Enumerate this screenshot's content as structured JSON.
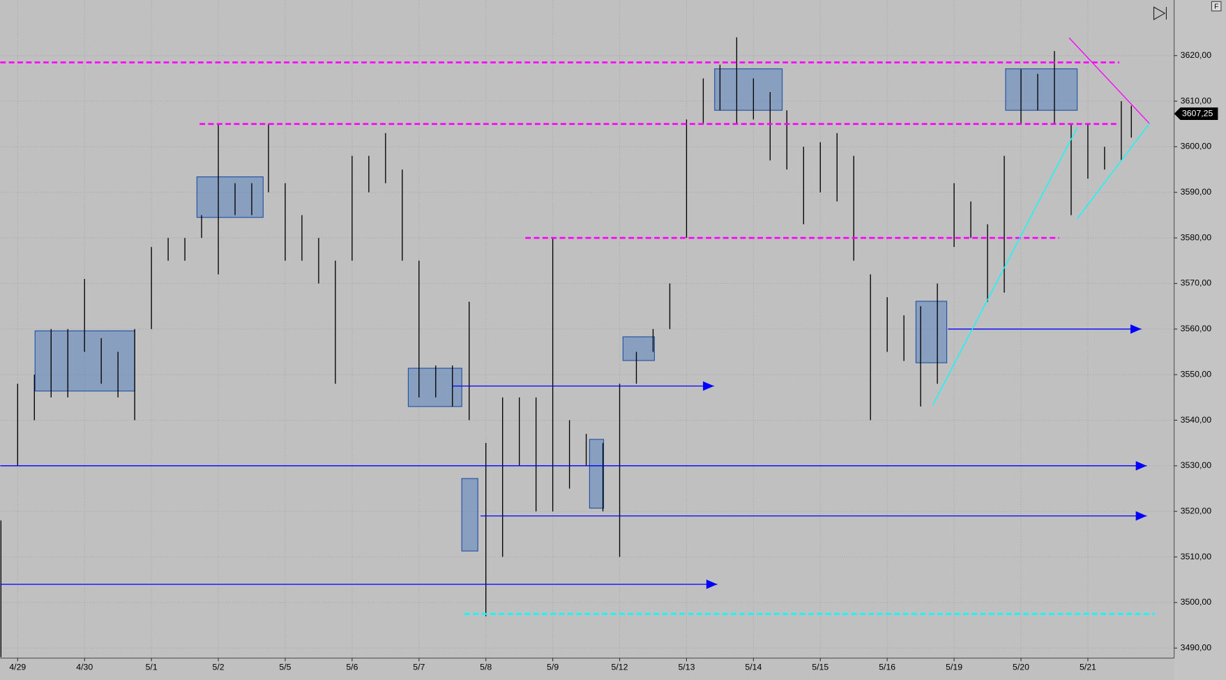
{
  "chart_data": {
    "type": "ohlc",
    "color": "#000000",
    "x": [
      -0.25,
      0,
      0.25,
      0.5,
      0.75,
      1,
      1.25,
      1.5,
      1.75,
      2,
      2.25,
      2.5,
      2.75,
      3,
      3.25,
      3.5,
      3.75,
      4,
      4.25,
      4.5,
      4.75,
      5,
      5.25,
      5.5,
      5.75,
      6,
      6.25,
      6.5,
      6.75,
      7,
      7.25,
      7.5,
      7.75,
      8,
      8.25,
      8.5,
      8.75,
      9,
      9.25,
      9.5,
      9.75,
      10,
      10.25,
      10.5,
      10.75,
      11,
      11.25,
      11.5,
      11.75,
      12,
      12.25,
      12.5,
      12.75,
      13,
      13.25,
      13.5,
      13.75,
      14,
      14.25,
      14.5,
      14.75,
      15,
      15.25,
      15.5,
      15.75,
      16,
      16.25,
      16.5,
      16.65
    ],
    "high": [
      3518,
      3548,
      3550,
      3560,
      3560,
      3571,
      3558,
      3555,
      3560,
      3578,
      3580,
      3580,
      3585,
      3605,
      3592,
      3592,
      3605,
      3592,
      3585,
      3580,
      3575,
      3598,
      3598,
      3603,
      3595,
      3575,
      3552,
      3552,
      3566,
      3535,
      3545,
      3545,
      3545,
      3580,
      3540,
      3537,
      3535,
      3548,
      3555,
      3560,
      3570,
      3606,
      3615,
      3618,
      3624,
      3615,
      3612,
      3608,
      3600,
      3601,
      3603,
      3598,
      3572,
      3567,
      3563,
      3565,
      3570,
      3592,
      3588,
      3583,
      3598,
      3617,
      3616,
      3621,
      3605,
      3605,
      3600,
      3610,
      3609
    ],
    "low": [
      3488,
      3530,
      3540,
      3545,
      3545,
      3555,
      3548,
      3545,
      3540,
      3560,
      3575,
      3575,
      3580,
      3572,
      3585,
      3585,
      3590,
      3575,
      3575,
      3570,
      3548,
      3575,
      3590,
      3592,
      3575,
      3545,
      3545,
      3543,
      3540,
      3497,
      3510,
      3530,
      3520,
      3520,
      3525,
      3530,
      3520,
      3510,
      3548,
      3555,
      3560,
      3580,
      3605,
      3608,
      3605,
      3606,
      3597,
      3595,
      3583,
      3590,
      3588,
      3575,
      3540,
      3555,
      3553,
      3543,
      3548,
      3578,
      3580,
      3566,
      3568,
      3605,
      3608,
      3605,
      3585,
      3593,
      3595,
      3597,
      3602
    ],
    "xlim": [
      -0.26,
      17.29
    ],
    "ylim": [
      3487.8,
      3632.2
    ],
    "grid": true,
    "xticks": [
      {
        "value": 0,
        "label": "4/29"
      },
      {
        "value": 1,
        "label": "4/30"
      },
      {
        "value": 2,
        "label": "5/1"
      },
      {
        "value": 3,
        "label": "5/2"
      },
      {
        "value": 4,
        "label": "5/5"
      },
      {
        "value": 5,
        "label": "5/6"
      },
      {
        "value": 6,
        "label": "5/7"
      },
      {
        "value": 7,
        "label": "5/8"
      },
      {
        "value": 8,
        "label": "5/9"
      },
      {
        "value": 9,
        "label": "5/12"
      },
      {
        "value": 10,
        "label": "5/13"
      },
      {
        "value": 11,
        "label": "5/14"
      },
      {
        "value": 12,
        "label": "5/15"
      },
      {
        "value": 13,
        "label": "5/16"
      },
      {
        "value": 14,
        "label": "5/19"
      },
      {
        "value": 15,
        "label": "5/20"
      },
      {
        "value": 16,
        "label": "5/21"
      }
    ],
    "yticks": [
      {
        "value": 3490,
        "label": "3490,00"
      },
      {
        "value": 3500,
        "label": "3500,00"
      },
      {
        "value": 3510,
        "label": "3510,00"
      },
      {
        "value": 3520,
        "label": "3520,00"
      },
      {
        "value": 3530,
        "label": "3530,00"
      },
      {
        "value": 3540,
        "label": "3540,00"
      },
      {
        "value": 3550,
        "label": "3550,00"
      },
      {
        "value": 3560,
        "label": "3560,00"
      },
      {
        "value": 3570,
        "label": "3570,00"
      },
      {
        "value": 3580,
        "label": "3580,00"
      },
      {
        "value": 3590,
        "label": "3590,00"
      },
      {
        "value": 3600,
        "label": "3600,00"
      },
      {
        "value": 3610,
        "label": "3610,00"
      },
      {
        "value": 3620,
        "label": "3620,00"
      }
    ],
    "last_price": {
      "value": 3607.25,
      "label": "3607,25"
    },
    "levels": [
      {
        "value": 3618.5,
        "from": -0.26,
        "to": 16.47,
        "color": "#ff00ff",
        "dashed": true,
        "arrow": false
      },
      {
        "value": 3605,
        "from": 2.72,
        "to": 16.47,
        "color": "#ff00ff",
        "dashed": true,
        "arrow": false
      },
      {
        "value": 3580,
        "from": 7.59,
        "to": 15.57,
        "color": "#ff00ff",
        "dashed": true,
        "arrow": false
      },
      {
        "value": 3497.5,
        "from": 6.68,
        "to": 17.0,
        "color": "#00ffff",
        "dashed": true,
        "arrow": false
      },
      {
        "value": 3530,
        "from": -0.26,
        "to": 16.88,
        "color": "#0000ff",
        "dashed": false,
        "arrow": true
      },
      {
        "value": 3519,
        "from": 6.92,
        "to": 16.88,
        "color": "#0000ff",
        "dashed": false,
        "arrow": true
      },
      {
        "value": 3504,
        "from": -0.26,
        "to": 10.46,
        "color": "#0000ff",
        "dashed": false,
        "arrow": true
      },
      {
        "value": 3547.5,
        "from": 6.5,
        "to": 10.41,
        "color": "#0000ff",
        "dashed": false,
        "arrow": true
      },
      {
        "value": 3560,
        "from": 13.91,
        "to": 16.8,
        "color": "#0000ff",
        "dashed": false,
        "arrow": true
      }
    ],
    "boxes": [
      {
        "x1": 0.26,
        "x2": 1.75,
        "y1": 3546.4,
        "y2": 3559.6
      },
      {
        "x1": 2.68,
        "x2": 3.67,
        "y1": 3584.5,
        "y2": 3593.4
      },
      {
        "x1": 5.84,
        "x2": 6.64,
        "y1": 3543.0,
        "y2": 3551.4
      },
      {
        "x1": 6.64,
        "x2": 6.88,
        "y1": 3511.3,
        "y2": 3527.2
      },
      {
        "x1": 8.55,
        "x2": 8.76,
        "y1": 3520.7,
        "y2": 3535.8
      },
      {
        "x1": 9.05,
        "x2": 9.52,
        "y1": 3553.1,
        "y2": 3558.3
      },
      {
        "x1": 10.42,
        "x2": 11.43,
        "y1": 3608.0,
        "y2": 3617.1
      },
      {
        "x1": 13.43,
        "x2": 13.89,
        "y1": 3552.6,
        "y2": 3566.1
      },
      {
        "x1": 14.77,
        "x2": 15.84,
        "y1": 3608.0,
        "y2": 3617.1
      }
    ],
    "trendlines": [
      {
        "x1": 15.72,
        "y1": 3623.9,
        "x2": 16.92,
        "y2": 3605.1,
        "color": "#ff00ff"
      },
      {
        "x1": 13.68,
        "y1": 3543.3,
        "x2": 15.84,
        "y2": 3604.2,
        "color": "#00ffff"
      },
      {
        "x1": 15.84,
        "y1": 3584.2,
        "x2": 16.92,
        "y2": 3605.1,
        "color": "#00ffff"
      }
    ]
  },
  "ui": {
    "corner_button": "F"
  }
}
